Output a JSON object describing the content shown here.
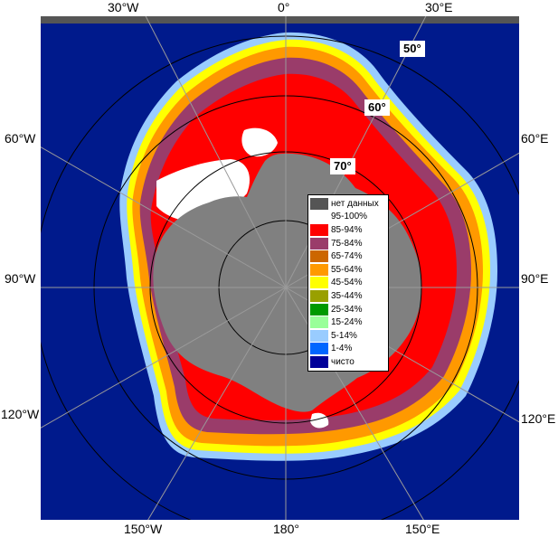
{
  "map": {
    "colors": {
      "open_water": "#001a8c",
      "land": "#808080",
      "no_data": "#000000",
      "grid": "#9a9a9a",
      "ring": "#000000"
    },
    "latitude_labels": [
      "50°",
      "60°",
      "70°"
    ],
    "longitude_labels": {
      "top": [
        "30°W",
        "0°",
        "30°E"
      ],
      "left": [
        "60°W",
        "90°W",
        "120°W"
      ],
      "right": [
        "60°E",
        "90°E",
        "120°E"
      ],
      "bottom": [
        "150°W",
        "180°",
        "150°E"
      ]
    }
  },
  "legend": {
    "items": [
      {
        "label": "нет данных",
        "color": "#555555"
      },
      {
        "label": "95-100%",
        "color": "#ffffff"
      },
      {
        "label": "85-94%",
        "color": "#ff0000"
      },
      {
        "label": "75-84%",
        "color": "#9a3c6a"
      },
      {
        "label": "65-74%",
        "color": "#cc6600"
      },
      {
        "label": "55-64%",
        "color": "#ff9900"
      },
      {
        "label": "45-54%",
        "color": "#ffff00"
      },
      {
        "label": "35-44%",
        "color": "#99a000"
      },
      {
        "label": "25-34%",
        "color": "#009900"
      },
      {
        "label": "15-24%",
        "color": "#99ff99"
      },
      {
        "label": "5-14%",
        "color": "#99ccff"
      },
      {
        "label": "1-4%",
        "color": "#0066ff"
      },
      {
        "label": "чисто",
        "color": "#000099"
      }
    ]
  }
}
